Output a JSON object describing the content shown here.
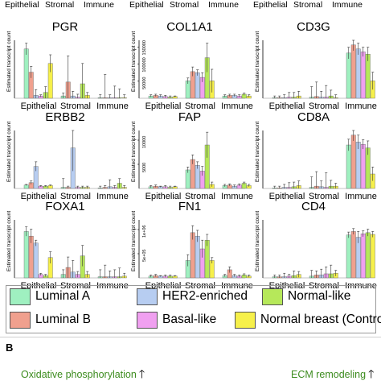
{
  "chart_data": {
    "type": "bar",
    "categories": [
      "Epithelial",
      "Stromal",
      "Immune"
    ],
    "ylabel": "Estimated transcript count",
    "series_names": [
      "Luminal A",
      "HER2-enriched",
      "Normal-like",
      "Luminal B",
      "Basal-like",
      "Normal breast (Controls)"
    ],
    "series_order": [
      "Luminal A",
      "Luminal B",
      "HER2-enriched",
      "Basal-like",
      "Normal-like",
      "Normal breast (Controls)"
    ],
    "colors": {
      "Luminal A": "#9ff0c0",
      "Luminal B": "#f0a08e",
      "HER2-enriched": "#b7cdf1",
      "Basal-like": "#f0a0f0",
      "Normal-like": "#b6e85a",
      "Normal breast (Controls)": "#f6f04a"
    },
    "top_row_labels": [
      "Epithelial",
      "Stromal",
      "Immune"
    ],
    "panels": [
      {
        "gene": "PGR",
        "ytick_labels": [],
        "ymax": 1.0,
        "values": [
          [
            0.85,
            0.45,
            0.05,
            0.04,
            0.1,
            0.6
          ],
          [
            0.04,
            0.28,
            0.04,
            0.02,
            0.25,
            0.05
          ],
          [
            0.01,
            0.01,
            0.01,
            0.01,
            0.01,
            0.01
          ]
        ],
        "errors": [
          [
            0.1,
            0.1,
            0.1,
            0.02,
            0.1,
            0.15
          ],
          [
            0.05,
            0.45,
            0.08,
            0.05,
            0.35,
            0.05
          ],
          [
            0.05,
            0.4,
            0.05,
            0.2,
            0.15,
            0.05
          ]
        ]
      },
      {
        "gene": "COL1A1",
        "ytick_labels": [
          "50000",
          "100000",
          "150000"
        ],
        "ymax": 1.0,
        "values": [
          [
            0.04,
            0.05,
            0.04,
            0.03,
            0.02,
            0.03
          ],
          [
            0.3,
            0.46,
            0.44,
            0.36,
            0.7,
            0.3
          ],
          [
            0.04,
            0.05,
            0.05,
            0.04,
            0.07,
            0.04
          ]
        ],
        "errors": [
          [
            0.02,
            0.02,
            0.02,
            0.02,
            0.02,
            0.01
          ],
          [
            0.05,
            0.08,
            0.05,
            0.08,
            0.25,
            0.2
          ],
          [
            0.02,
            0.02,
            0.02,
            0.02,
            0.02,
            0.02
          ]
        ]
      },
      {
        "gene": "CD3G",
        "ytick_labels": [],
        "ymax": 1.0,
        "values": [
          [
            0.01,
            0.01,
            0.01,
            0.02,
            0.02,
            0.04
          ],
          [
            0.02,
            0.03,
            0.02,
            0.02,
            0.04,
            0.01
          ],
          [
            0.78,
            0.92,
            0.85,
            0.8,
            0.76,
            0.3
          ]
        ],
        "errors": [
          [
            0.03,
            0.03,
            0.05,
            0.08,
            0.08,
            0.08
          ],
          [
            0.18,
            0.25,
            0.1,
            0.2,
            0.1,
            0.05
          ],
          [
            0.1,
            0.1,
            0.1,
            0.08,
            0.12,
            0.15
          ]
        ]
      },
      {
        "gene": "ERBB2",
        "ytick_labels": [],
        "ymax": 1.0,
        "values": [
          [
            0.06,
            0.1,
            0.38,
            0.04,
            0.04,
            0.05
          ],
          [
            0.02,
            0.02,
            0.7,
            0.02,
            0.02,
            0.02
          ],
          [
            0.01,
            0.02,
            0.03,
            0.02,
            0.09,
            0.02
          ]
        ],
        "errors": [
          [
            0.01,
            0.03,
            0.08,
            0.01,
            0.01,
            0.01
          ],
          [
            0.15,
            0.02,
            0.4,
            0.02,
            0.02,
            0.02
          ],
          [
            0.03,
            0.03,
            0.12,
            0.03,
            0.08,
            0.03
          ]
        ]
      },
      {
        "gene": "FAP",
        "ytick_labels": [
          "5000",
          "10000"
        ],
        "ymax": 1.0,
        "values": [
          [
            0.03,
            0.04,
            0.03,
            0.03,
            0.02,
            0.03
          ],
          [
            0.32,
            0.5,
            0.4,
            0.3,
            0.75,
            0.07
          ],
          [
            0.05,
            0.06,
            0.04,
            0.06,
            0.09,
            0.05
          ]
        ],
        "errors": [
          [
            0.02,
            0.02,
            0.01,
            0.02,
            0.02,
            0.01
          ],
          [
            0.05,
            0.08,
            0.06,
            0.08,
            0.22,
            0.04
          ],
          [
            0.02,
            0.02,
            0.02,
            0.02,
            0.02,
            0.02
          ]
        ]
      },
      {
        "gene": "CD8A",
        "ytick_labels": [],
        "ymax": 1.0,
        "values": [
          [
            0.01,
            0.01,
            0.02,
            0.02,
            0.03,
            0.05
          ],
          [
            0.02,
            0.04,
            0.03,
            0.02,
            0.04,
            0.04
          ],
          [
            0.75,
            0.92,
            0.8,
            0.76,
            0.7,
            0.25
          ]
        ],
        "errors": [
          [
            0.03,
            0.03,
            0.05,
            0.08,
            0.08,
            0.08
          ],
          [
            0.18,
            0.25,
            0.1,
            0.25,
            0.1,
            0.05
          ],
          [
            0.1,
            0.1,
            0.12,
            0.08,
            0.12,
            0.12
          ]
        ]
      },
      {
        "gene": "FOXA1",
        "ytick_labels": [],
        "ymax": 1.0,
        "values": [
          [
            0.8,
            0.72,
            0.6,
            0.06,
            0.04,
            0.35
          ],
          [
            0.06,
            0.18,
            0.1,
            0.06,
            0.38,
            0.06
          ],
          [
            0.02,
            0.02,
            0.02,
            0.02,
            0.02,
            0.03
          ]
        ],
        "errors": [
          [
            0.08,
            0.12,
            0.05,
            0.02,
            0.02,
            0.1
          ],
          [
            0.08,
            0.18,
            0.2,
            0.05,
            0.18,
            0.05
          ],
          [
            0.12,
            0.2,
            0.1,
            0.12,
            0.15,
            0.05
          ]
        ]
      },
      {
        "gene": "FN1",
        "ytick_labels": [
          "5e+05",
          "1e+06"
        ],
        "ymax": 1.0,
        "values": [
          [
            0.03,
            0.04,
            0.03,
            0.03,
            0.03,
            0.03
          ],
          [
            0.3,
            0.78,
            0.72,
            0.5,
            0.65,
            0.3
          ],
          [
            0.04,
            0.14,
            0.04,
            0.03,
            0.05,
            0.03
          ]
        ],
        "errors": [
          [
            0.02,
            0.02,
            0.01,
            0.02,
            0.02,
            0.01
          ],
          [
            0.1,
            0.12,
            0.1,
            0.15,
            0.1,
            0.05
          ],
          [
            0.02,
            0.05,
            0.02,
            0.02,
            0.02,
            0.02
          ]
        ]
      },
      {
        "gene": "CD4",
        "ytick_labels": [],
        "ymax": 1.0,
        "values": [
          [
            0.02,
            0.02,
            0.02,
            0.03,
            0.04,
            0.06
          ],
          [
            0.03,
            0.05,
            0.05,
            0.07,
            0.07,
            0.08
          ],
          [
            0.74,
            0.8,
            0.7,
            0.76,
            0.78,
            0.75
          ]
        ],
        "errors": [
          [
            0.03,
            0.03,
            0.06,
            0.03,
            0.08,
            0.05
          ],
          [
            0.1,
            0.07,
            0.1,
            0.12,
            0.15,
            0.05
          ],
          [
            0.05,
            0.05,
            0.1,
            0.05,
            0.06,
            0.05
          ]
        ]
      }
    ]
  },
  "legend": {
    "row1": [
      {
        "label": "Luminal A",
        "color": "#9ff0c0"
      },
      {
        "label": "HER2-enriched",
        "color": "#b7cdf1"
      },
      {
        "label": "Normal-like",
        "color": "#b6e85a"
      }
    ],
    "row2": [
      {
        "label": "Luminal B",
        "color": "#f0a08e"
      },
      {
        "label": "Basal-like",
        "color": "#f0a0f0"
      },
      {
        "label": "Normal breast (Controls)",
        "color": "#f6f04a"
      }
    ]
  },
  "panel_b": {
    "label": "B",
    "left_annotation": "Oxidative phosphorylation",
    "right_annotation": "ECM remodeling",
    "arrow": "🡑"
  }
}
